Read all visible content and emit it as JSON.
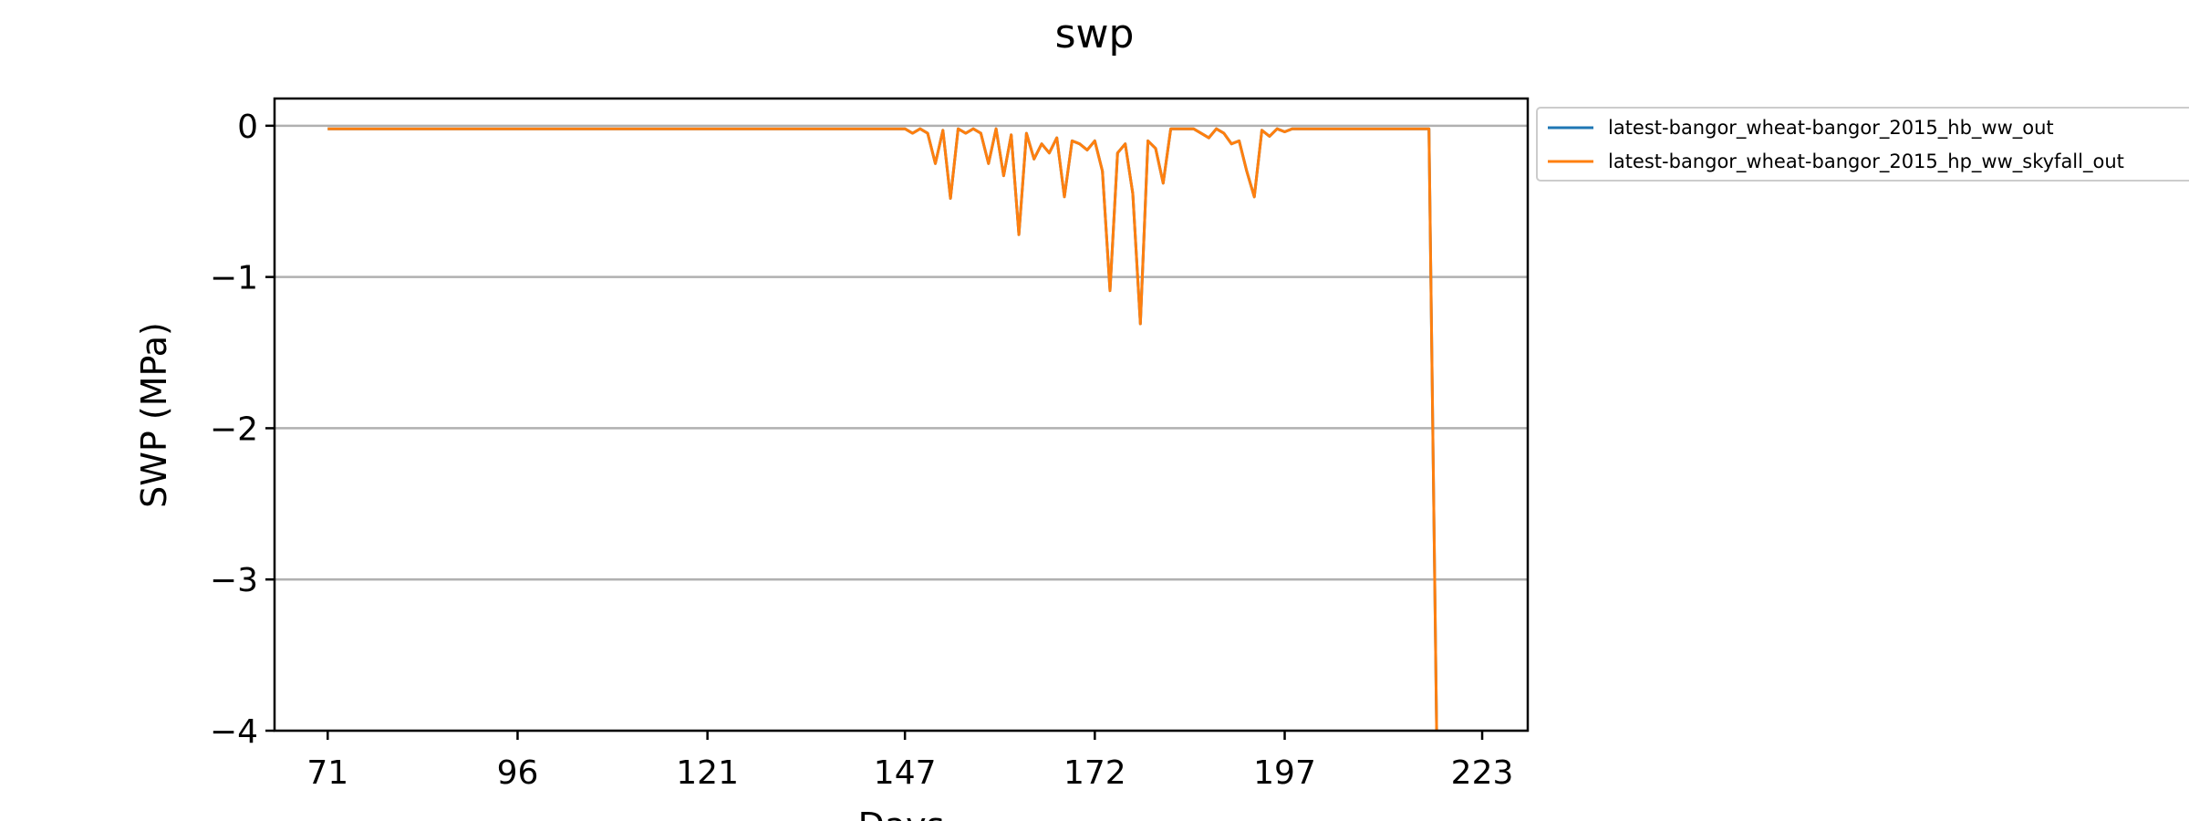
{
  "chart_data": {
    "type": "line",
    "title": "swp",
    "xlabel": "Days",
    "ylabel": "SWP (MPa)",
    "xlim": [
      64,
      229
    ],
    "ylim": [
      -4.0,
      0.18
    ],
    "xticks": [
      71,
      96,
      121,
      147,
      172,
      197,
      223
    ],
    "yticks": [
      0,
      -1,
      -2,
      -3,
      -4
    ],
    "ytick_labels": [
      "0",
      "−1",
      "−2",
      "−3",
      "−4"
    ],
    "grid": "horizontal",
    "legend_position": "outside-right",
    "series": [
      {
        "name": "latest-bangor_wheat-bangor_2015_hb_ww_out",
        "color": "#1f77b4",
        "x": [
          71,
          147,
          148,
          149,
          150,
          151,
          152,
          153,
          154,
          155,
          156,
          157,
          158,
          159,
          160,
          161,
          162,
          163,
          164,
          165,
          166,
          167,
          168,
          169,
          170,
          171,
          172,
          173,
          174,
          175,
          176,
          177,
          178,
          179,
          180,
          181,
          182,
          183,
          184,
          185,
          186,
          187,
          188,
          189,
          190,
          191,
          192,
          193,
          194,
          195,
          196,
          197,
          198,
          199,
          200,
          216,
          217
        ],
        "y": [
          -0.02,
          -0.02,
          -0.05,
          -0.02,
          -0.05,
          -0.25,
          -0.03,
          -0.48,
          -0.02,
          -0.05,
          -0.02,
          -0.05,
          -0.25,
          -0.02,
          -0.33,
          -0.06,
          -0.72,
          -0.05,
          -0.22,
          -0.12,
          -0.18,
          -0.08,
          -0.47,
          -0.1,
          -0.12,
          -0.16,
          -0.1,
          -0.3,
          -1.09,
          -0.18,
          -0.12,
          -0.45,
          -1.31,
          -0.1,
          -0.15,
          -0.38,
          -0.02,
          -0.02,
          -0.02,
          -0.02,
          -0.05,
          -0.08,
          -0.02,
          -0.05,
          -0.12,
          -0.1,
          -0.3,
          -0.47,
          -0.03,
          -0.07,
          -0.02,
          -0.04,
          -0.02,
          -0.02,
          -0.02,
          -0.02,
          -4.0
        ]
      },
      {
        "name": "latest-bangor_wheat-bangor_2015_hp_ww_skyfall_out",
        "color": "#ff7f0e",
        "x": [
          71,
          147,
          148,
          149,
          150,
          151,
          152,
          153,
          154,
          155,
          156,
          157,
          158,
          159,
          160,
          161,
          162,
          163,
          164,
          165,
          166,
          167,
          168,
          169,
          170,
          171,
          172,
          173,
          174,
          175,
          176,
          177,
          178,
          179,
          180,
          181,
          182,
          183,
          184,
          185,
          186,
          187,
          188,
          189,
          190,
          191,
          192,
          193,
          194,
          195,
          196,
          197,
          198,
          199,
          200,
          216,
          217
        ],
        "y": [
          -0.02,
          -0.02,
          -0.05,
          -0.02,
          -0.05,
          -0.25,
          -0.03,
          -0.48,
          -0.02,
          -0.05,
          -0.02,
          -0.05,
          -0.25,
          -0.02,
          -0.33,
          -0.06,
          -0.72,
          -0.05,
          -0.22,
          -0.12,
          -0.18,
          -0.08,
          -0.47,
          -0.1,
          -0.12,
          -0.16,
          -0.1,
          -0.3,
          -1.09,
          -0.18,
          -0.12,
          -0.45,
          -1.31,
          -0.1,
          -0.15,
          -0.38,
          -0.02,
          -0.02,
          -0.02,
          -0.02,
          -0.05,
          -0.08,
          -0.02,
          -0.05,
          -0.12,
          -0.1,
          -0.3,
          -0.47,
          -0.03,
          -0.07,
          -0.02,
          -0.04,
          -0.02,
          -0.02,
          -0.02,
          -0.02,
          -4.0
        ]
      }
    ]
  }
}
